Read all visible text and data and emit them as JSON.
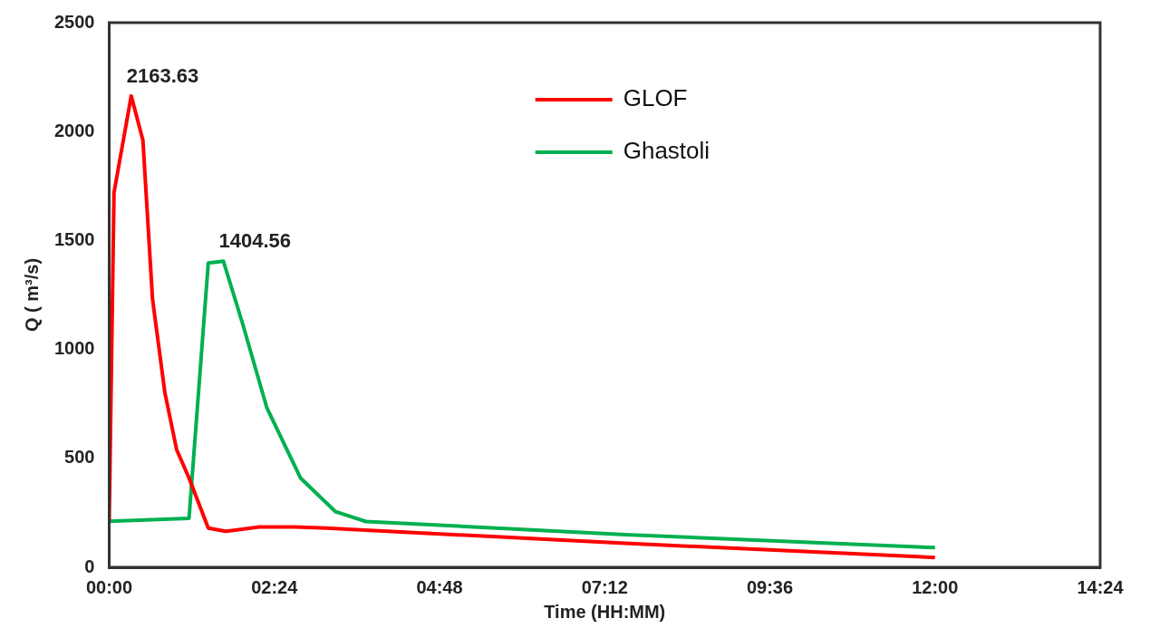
{
  "chart_data": {
    "type": "line",
    "xlabel": "Time (HH:MM)",
    "ylabel": "Q ( m³/s)",
    "xlim": [
      0,
      14.4
    ],
    "xticks": [
      {
        "value": 0,
        "label": "00:00"
      },
      {
        "value": 2.4,
        "label": "02:24"
      },
      {
        "value": 4.8,
        "label": "04:48"
      },
      {
        "value": 7.2,
        "label": "07:12"
      },
      {
        "value": 9.6,
        "label": "09:36"
      },
      {
        "value": 12,
        "label": "12:00"
      },
      {
        "value": 14.4,
        "label": "14:24"
      }
    ],
    "ylim": [
      0,
      2500
    ],
    "yticks": [
      0,
      500,
      1000,
      1500,
      2000,
      2500
    ],
    "grid": false,
    "legend": "top right",
    "marker": "none",
    "line_style": "solid",
    "series": [
      {
        "name": "GLOF",
        "color": "#ff0000",
        "x": [
          0,
          0.07,
          0.32,
          0.49,
          0.63,
          0.81,
          0.98,
          1.16,
          1.44,
          1.69,
          2.18,
          2.69,
          3.15,
          7.5,
          12
        ],
        "values": [
          211,
          1720,
          2163.63,
          1960,
          1230,
          800,
          540,
          410,
          180,
          165,
          185,
          185,
          180,
          110,
          45
        ]
      },
      {
        "name": "Ghastoli",
        "color": "#00b050",
        "x": [
          0,
          1.16,
          1.44,
          1.66,
          1.94,
          2.29,
          2.78,
          3.29,
          3.73,
          7.5,
          12
        ],
        "values": [
          211,
          225,
          1397,
          1404.56,
          1117,
          733,
          410,
          255,
          210,
          150,
          90
        ]
      }
    ],
    "annotations": [
      {
        "text": "2163.63",
        "x": 0.32,
        "y": 2163.63
      },
      {
        "text": "1404.56",
        "x": 1.66,
        "y": 1404.56
      }
    ]
  }
}
